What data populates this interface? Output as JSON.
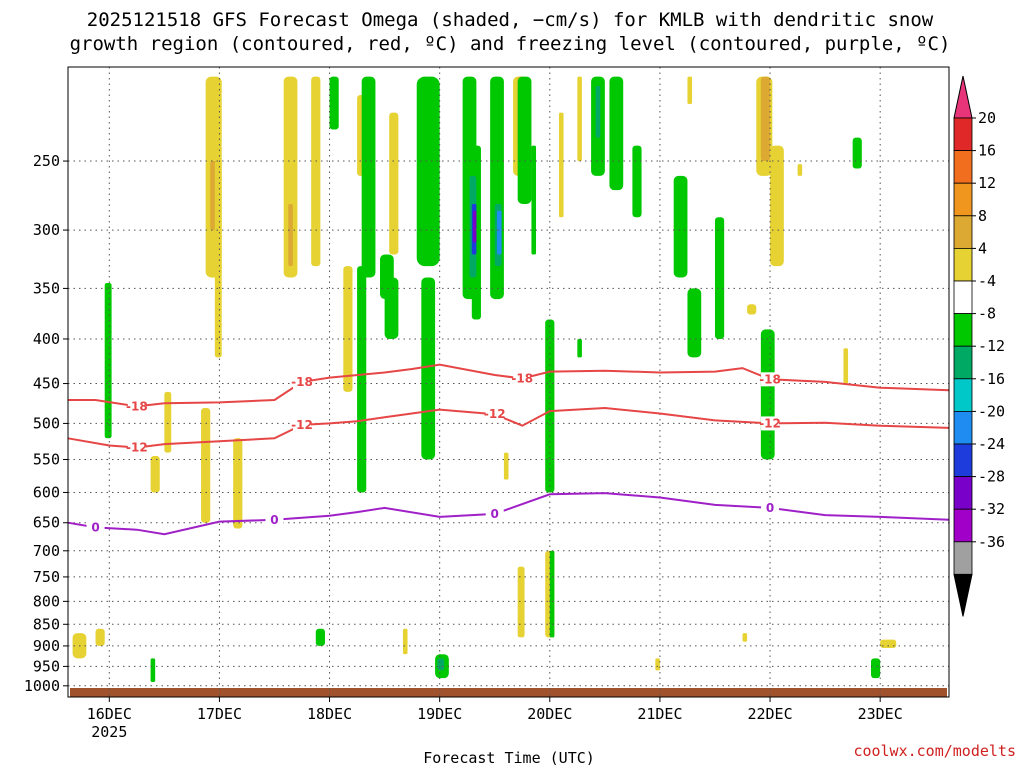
{
  "chart_data": {
    "type": "heatmap",
    "title_line1": "2025121518 GFS Forecast Omega (shaded, −cm/s) for KMLB with dendritic snow",
    "title_line2": "growth region (contoured, red, ºC) and freezing level (contoured, purple, ºC)",
    "xlabel": "Forecast Time (UTC)",
    "ylabel": "",
    "y_scale": "log-pressure",
    "yticks": [
      250,
      300,
      350,
      400,
      450,
      500,
      550,
      600,
      650,
      700,
      750,
      800,
      850,
      900,
      950,
      1000
    ],
    "ylim": [
      195,
      1030
    ],
    "x_range": [
      "2025-12-15T15:00Z",
      "2025-12-23T15:00Z"
    ],
    "xticks": [
      {
        "t": "2025-12-16T00:00Z",
        "label": "16DEC"
      },
      {
        "t": "2025-12-17T00:00Z",
        "label": "17DEC"
      },
      {
        "t": "2025-12-18T00:00Z",
        "label": "18DEC"
      },
      {
        "t": "2025-12-19T00:00Z",
        "label": "19DEC"
      },
      {
        "t": "2025-12-20T00:00Z",
        "label": "20DEC"
      },
      {
        "t": "2025-12-21T00:00Z",
        "label": "21DEC"
      },
      {
        "t": "2025-12-22T00:00Z",
        "label": "22DEC"
      },
      {
        "t": "2025-12-23T00:00Z",
        "label": "23DEC"
      }
    ],
    "year_label": "2025",
    "grid": true,
    "colorbar": {
      "levels": [
        20,
        16,
        12,
        8,
        4,
        -4,
        -8,
        -12,
        -16,
        -20,
        -24,
        -28,
        -32,
        -36
      ],
      "label_levels": [
        "20",
        "16",
        "12",
        "8",
        "4",
        "-4",
        "-8",
        "-12",
        "-16",
        "-20",
        "-24",
        "-28",
        "-32",
        "-36"
      ],
      "colors": [
        "#e8357a",
        "#e02828",
        "#f06e1e",
        "#f0961e",
        "#dcaa32",
        "#e6d232",
        "#ffffff",
        "#00c800",
        "#00aa64",
        "#00c8c8",
        "#1e8cf0",
        "#1e3cdc",
        "#7800c8",
        "#a000c8",
        "#a0a0a0",
        "#000000"
      ]
    },
    "contours": [
      {
        "label": "-18",
        "color": "#e64646",
        "points": [
          [
            "2025-12-15T15:00Z",
            470
          ],
          [
            "2025-12-15T21:00Z",
            470
          ],
          [
            "2025-12-16T06:00Z",
            478
          ],
          [
            "2025-12-16T12:00Z",
            474
          ],
          [
            "2025-12-17T00:00Z",
            473
          ],
          [
            "2025-12-17T12:00Z",
            470
          ],
          [
            "2025-12-17T18:00Z",
            448
          ],
          [
            "2025-12-18T00:00Z",
            443
          ],
          [
            "2025-12-18T12:00Z",
            437
          ],
          [
            "2025-12-18T18:00Z",
            433
          ],
          [
            "2025-12-19T00:00Z",
            428
          ],
          [
            "2025-12-19T12:00Z",
            440
          ],
          [
            "2025-12-19T18:00Z",
            444
          ],
          [
            "2025-12-20T00:00Z",
            436
          ],
          [
            "2025-12-20T12:00Z",
            435
          ],
          [
            "2025-12-21T00:00Z",
            437
          ],
          [
            "2025-12-21T12:00Z",
            436
          ],
          [
            "2025-12-21T18:00Z",
            432
          ],
          [
            "2025-12-22T00:00Z",
            445
          ],
          [
            "2025-12-22T12:00Z",
            448
          ],
          [
            "2025-12-23T00:00Z",
            455
          ],
          [
            "2025-12-23T15:00Z",
            458
          ]
        ]
      },
      {
        "label": "-12",
        "color": "#e64646",
        "points": [
          [
            "2025-12-15T15:00Z",
            520
          ],
          [
            "2025-12-16T00:00Z",
            530
          ],
          [
            "2025-12-16T06:00Z",
            533
          ],
          [
            "2025-12-16T12:00Z",
            528
          ],
          [
            "2025-12-17T00:00Z",
            524
          ],
          [
            "2025-12-17T12:00Z",
            520
          ],
          [
            "2025-12-17T18:00Z",
            502
          ],
          [
            "2025-12-18T00:00Z",
            500
          ],
          [
            "2025-12-18T06:00Z",
            497
          ],
          [
            "2025-12-18T12:00Z",
            492
          ],
          [
            "2025-12-19T00:00Z",
            482
          ],
          [
            "2025-12-19T12:00Z",
            488
          ],
          [
            "2025-12-19T18:00Z",
            503
          ],
          [
            "2025-12-20T00:00Z",
            484
          ],
          [
            "2025-12-20T12:00Z",
            480
          ],
          [
            "2025-12-21T00:00Z",
            487
          ],
          [
            "2025-12-21T12:00Z",
            496
          ],
          [
            "2025-12-22T00:00Z",
            500
          ],
          [
            "2025-12-22T12:00Z",
            499
          ],
          [
            "2025-12-23T00:00Z",
            503
          ],
          [
            "2025-12-23T15:00Z",
            506
          ]
        ]
      },
      {
        "label": "0",
        "color": "#a020c8",
        "points": [
          [
            "2025-12-15T15:00Z",
            650
          ],
          [
            "2025-12-15T21:00Z",
            658
          ],
          [
            "2025-12-16T06:00Z",
            662
          ],
          [
            "2025-12-16T12:00Z",
            670
          ],
          [
            "2025-12-17T00:00Z",
            648
          ],
          [
            "2025-12-17T12:00Z",
            645
          ],
          [
            "2025-12-18T00:00Z",
            638
          ],
          [
            "2025-12-18T06:00Z",
            632
          ],
          [
            "2025-12-18T12:00Z",
            625
          ],
          [
            "2025-12-19T00:00Z",
            640
          ],
          [
            "2025-12-19T12:00Z",
            635
          ],
          [
            "2025-12-20T00:00Z",
            603
          ],
          [
            "2025-12-20T12:00Z",
            601
          ],
          [
            "2025-12-21T00:00Z",
            608
          ],
          [
            "2025-12-21T12:00Z",
            620
          ],
          [
            "2025-12-22T00:00Z",
            625
          ],
          [
            "2025-12-22T12:00Z",
            637
          ],
          [
            "2025-12-23T00:00Z",
            640
          ],
          [
            "2025-12-23T15:00Z",
            645
          ]
        ]
      }
    ],
    "shaded_regions": [
      {
        "level": "4",
        "t0": "2025-12-15T16:00Z",
        "t1": "2025-12-15T19:00Z",
        "p0": 870,
        "p1": 930
      },
      {
        "level": "4",
        "t0": "2025-12-15T21:00Z",
        "t1": "2025-12-15T23:00Z",
        "p0": 860,
        "p1": 900
      },
      {
        "level": "4",
        "t0": "2025-12-16T09:00Z",
        "t1": "2025-12-16T11:00Z",
        "p0": 545,
        "p1": 600
      },
      {
        "level": "4",
        "t0": "2025-12-16T12:00Z",
        "t1": "2025-12-16T13:30Z",
        "p0": 460,
        "p1": 540
      },
      {
        "level": "4",
        "t0": "2025-12-16T21:00Z",
        "t1": "2025-12-17T00:30Z",
        "p0": 200,
        "p1": 340
      },
      {
        "level": "8",
        "t0": "2025-12-16T22:00Z",
        "t1": "2025-12-16T23:30Z",
        "p0": 250,
        "p1": 300
      },
      {
        "level": "4",
        "t0": "2025-12-16T23:00Z",
        "t1": "2025-12-17T00:30Z",
        "p0": 250,
        "p1": 420
      },
      {
        "level": "4",
        "t0": "2025-12-16T20:00Z",
        "t1": "2025-12-16T22:00Z",
        "p0": 480,
        "p1": 650
      },
      {
        "level": "4",
        "t0": "2025-12-17T03:00Z",
        "t1": "2025-12-17T05:00Z",
        "p0": 520,
        "p1": 660
      },
      {
        "level": "4",
        "t0": "2025-12-17T14:00Z",
        "t1": "2025-12-17T17:00Z",
        "p0": 200,
        "p1": 340
      },
      {
        "level": "8",
        "t0": "2025-12-17T15:00Z",
        "t1": "2025-12-17T16:00Z",
        "p0": 280,
        "p1": 330
      },
      {
        "level": "4",
        "t0": "2025-12-17T20:00Z",
        "t1": "2025-12-17T22:00Z",
        "p0": 200,
        "p1": 330
      },
      {
        "level": "4",
        "t0": "2025-12-18T03:00Z",
        "t1": "2025-12-18T05:00Z",
        "p0": 330,
        "p1": 460
      },
      {
        "level": "4",
        "t0": "2025-12-18T06:00Z",
        "t1": "2025-12-18T08:00Z",
        "p0": 210,
        "p1": 260
      },
      {
        "level": "4",
        "t0": "2025-12-18T13:00Z",
        "t1": "2025-12-18T15:00Z",
        "p0": 220,
        "p1": 320
      },
      {
        "level": "4",
        "t0": "2025-12-18T16:00Z",
        "t1": "2025-12-18T17:00Z",
        "p0": 860,
        "p1": 920
      },
      {
        "level": "4",
        "t0": "2025-12-19T16:00Z",
        "t1": "2025-12-19T19:00Z",
        "p0": 200,
        "p1": 260
      },
      {
        "level": "8",
        "t0": "2025-12-19T17:00Z",
        "t1": "2025-12-19T18:30Z",
        "p0": 200,
        "p1": 240
      },
      {
        "level": "4",
        "t0": "2025-12-19T14:00Z",
        "t1": "2025-12-19T15:00Z",
        "p0": 540,
        "p1": 580
      },
      {
        "level": "4",
        "t0": "2025-12-19T17:00Z",
        "t1": "2025-12-19T18:30Z",
        "p0": 730,
        "p1": 880
      },
      {
        "level": "4",
        "t0": "2025-12-19T23:00Z",
        "t1": "2025-12-20T01:00Z",
        "p0": 700,
        "p1": 880
      },
      {
        "level": "4",
        "t0": "2025-12-20T02:00Z",
        "t1": "2025-12-20T03:00Z",
        "p0": 220,
        "p1": 290
      },
      {
        "level": "4",
        "t0": "2025-12-20T06:00Z",
        "t1": "2025-12-20T07:00Z",
        "p0": 200,
        "p1": 250
      },
      {
        "level": "4",
        "t0": "2025-12-21T06:00Z",
        "t1": "2025-12-21T07:00Z",
        "p0": 200,
        "p1": 215
      },
      {
        "level": "4",
        "t0": "2025-12-21T21:00Z",
        "t1": "2025-12-22T00:30Z",
        "p0": 200,
        "p1": 260
      },
      {
        "level": "8",
        "t0": "2025-12-21T22:00Z",
        "t1": "2025-12-22T00:00Z",
        "p0": 200,
        "p1": 250
      },
      {
        "level": "4",
        "t0": "2025-12-22T00:00Z",
        "t1": "2025-12-22T03:00Z",
        "p0": 240,
        "p1": 330
      },
      {
        "level": "4",
        "t0": "2025-12-22T06:00Z",
        "t1": "2025-12-22T07:00Z",
        "p0": 252,
        "p1": 260
      },
      {
        "level": "4",
        "t0": "2025-12-21T19:00Z",
        "t1": "2025-12-21T21:00Z",
        "p0": 365,
        "p1": 375
      },
      {
        "level": "4",
        "t0": "2025-12-22T16:00Z",
        "t1": "2025-12-22T17:00Z",
        "p0": 410,
        "p1": 450
      },
      {
        "level": "4",
        "t0": "2025-12-21T18:00Z",
        "t1": "2025-12-21T19:00Z",
        "p0": 870,
        "p1": 890
      },
      {
        "level": "4",
        "t0": "2025-12-20T23:00Z",
        "t1": "2025-12-21T00:00Z",
        "p0": 930,
        "p1": 960
      },
      {
        "level": "4",
        "t0": "2025-12-23T00:00Z",
        "t1": "2025-12-23T03:30Z",
        "p0": 885,
        "p1": 905
      },
      {
        "level": "-4",
        "t0": "2025-12-15T23:00Z",
        "t1": "2025-12-16T00:30Z",
        "p0": 345,
        "p1": 520
      },
      {
        "level": "-4",
        "t0": "2025-12-16T09:00Z",
        "t1": "2025-12-16T10:00Z",
        "p0": 930,
        "p1": 990
      },
      {
        "level": "-4",
        "t0": "2025-12-17T21:00Z",
        "t1": "2025-12-17T23:00Z",
        "p0": 860,
        "p1": 900
      },
      {
        "level": "-4",
        "t0": "2025-12-18T00:00Z",
        "t1": "2025-12-18T02:00Z",
        "p0": 200,
        "p1": 230
      },
      {
        "level": "-4",
        "t0": "2025-12-18T06:00Z",
        "t1": "2025-12-18T08:00Z",
        "p0": 330,
        "p1": 600
      },
      {
        "level": "-4",
        "t0": "2025-12-18T07:00Z",
        "t1": "2025-12-18T10:00Z",
        "p0": 200,
        "p1": 340
      },
      {
        "level": "-4",
        "t0": "2025-12-18T11:00Z",
        "t1": "2025-12-18T14:00Z",
        "p0": 320,
        "p1": 360
      },
      {
        "level": "-4",
        "t0": "2025-12-18T12:00Z",
        "t1": "2025-12-18T15:00Z",
        "p0": 340,
        "p1": 400
      },
      {
        "level": "-4",
        "t0": "2025-12-18T19:00Z",
        "t1": "2025-12-19T00:00Z",
        "p0": 200,
        "p1": 330
      },
      {
        "level": "-4",
        "t0": "2025-12-18T20:00Z",
        "t1": "2025-12-18T23:00Z",
        "p0": 340,
        "p1": 550
      },
      {
        "level": "-4",
        "t0": "2025-12-18T23:00Z",
        "t1": "2025-12-19T02:00Z",
        "p0": 920,
        "p1": 980
      },
      {
        "level": "-8",
        "t0": "2025-12-18T23:30Z",
        "t1": "2025-12-19T01:00Z",
        "p0": 930,
        "p1": 960
      },
      {
        "level": "-4",
        "t0": "2025-12-19T05:00Z",
        "t1": "2025-12-19T08:00Z",
        "p0": 200,
        "p1": 360
      },
      {
        "level": "-4",
        "t0": "2025-12-19T07:00Z",
        "t1": "2025-12-19T09:00Z",
        "p0": 240,
        "p1": 380
      },
      {
        "level": "-8",
        "t0": "2025-12-19T06:30Z",
        "t1": "2025-12-19T08:00Z",
        "p0": 260,
        "p1": 340
      },
      {
        "level": "-20",
        "t0": "2025-12-19T07:00Z",
        "t1": "2025-12-19T08:00Z",
        "p0": 280,
        "p1": 320
      },
      {
        "level": "-28",
        "t0": "2025-12-19T07:15Z",
        "t1": "2025-12-19T08:00Z",
        "p0": 285,
        "p1": 310
      },
      {
        "level": "-4",
        "t0": "2025-12-19T11:00Z",
        "t1": "2025-12-19T14:00Z",
        "p0": 200,
        "p1": 360
      },
      {
        "level": "-8",
        "t0": "2025-12-19T12:00Z",
        "t1": "2025-12-19T13:30Z",
        "p0": 280,
        "p1": 330
      },
      {
        "level": "-16",
        "t0": "2025-12-19T12:30Z",
        "t1": "2025-12-19T13:30Z",
        "p0": 285,
        "p1": 320
      },
      {
        "level": "-4",
        "t0": "2025-12-19T17:00Z",
        "t1": "2025-12-19T20:00Z",
        "p0": 200,
        "p1": 280
      },
      {
        "level": "-4",
        "t0": "2025-12-19T20:00Z",
        "t1": "2025-12-19T21:00Z",
        "p0": 240,
        "p1": 320
      },
      {
        "level": "-4",
        "t0": "2025-12-19T23:00Z",
        "t1": "2025-12-20T01:00Z",
        "p0": 380,
        "p1": 600
      },
      {
        "level": "-4",
        "t0": "2025-12-20T00:00Z",
        "t1": "2025-12-20T01:00Z",
        "p0": 700,
        "p1": 880
      },
      {
        "level": "-4",
        "t0": "2025-12-20T09:00Z",
        "t1": "2025-12-20T12:00Z",
        "p0": 200,
        "p1": 260
      },
      {
        "level": "-8",
        "t0": "2025-12-20T10:00Z",
        "t1": "2025-12-20T11:00Z",
        "p0": 205,
        "p1": 235
      },
      {
        "level": "-4",
        "t0": "2025-12-20T13:00Z",
        "t1": "2025-12-20T16:00Z",
        "p0": 200,
        "p1": 270
      },
      {
        "level": "-4",
        "t0": "2025-12-20T18:00Z",
        "t1": "2025-12-20T20:00Z",
        "p0": 240,
        "p1": 290
      },
      {
        "level": "-4",
        "t0": "2025-12-20T06:00Z",
        "t1": "2025-12-20T07:00Z",
        "p0": 400,
        "p1": 420
      },
      {
        "level": "-4",
        "t0": "2025-12-21T03:00Z",
        "t1": "2025-12-21T06:00Z",
        "p0": 260,
        "p1": 340
      },
      {
        "level": "-4",
        "t0": "2025-12-21T06:00Z",
        "t1": "2025-12-21T09:00Z",
        "p0": 350,
        "p1": 420
      },
      {
        "level": "-4",
        "t0": "2025-12-21T12:00Z",
        "t1": "2025-12-21T14:00Z",
        "p0": 290,
        "p1": 400
      },
      {
        "level": "-4",
        "t0": "2025-12-21T22:00Z",
        "t1": "2025-12-22T01:00Z",
        "p0": 390,
        "p1": 550
      },
      {
        "level": "-4",
        "t0": "2025-12-22T22:00Z",
        "t1": "2025-12-23T00:00Z",
        "p0": 930,
        "p1": 980
      },
      {
        "level": "-4",
        "t0": "2025-12-22T18:00Z",
        "t1": "2025-12-22T20:00Z",
        "p0": 235,
        "p1": 255
      }
    ],
    "ground_color": "#a0522d"
  },
  "credit": "coolwx.com/modelts"
}
